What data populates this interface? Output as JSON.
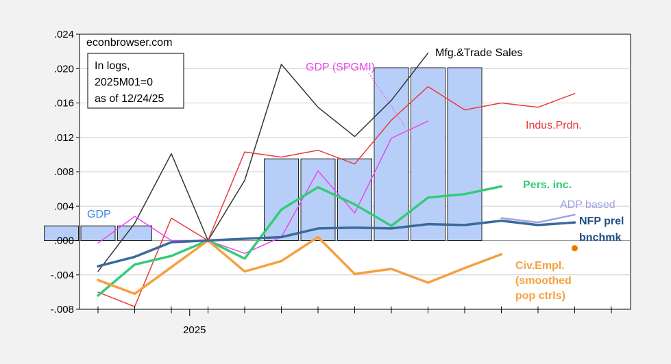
{
  "chart_data": {
    "type": "bar+line",
    "source_label": "econbrowser.com",
    "note_lines": [
      "In logs,",
      "2025M01=0",
      "as of 12/24/25"
    ],
    "x_tick_label": "2025",
    "ylim": [
      -0.008,
      0.024
    ],
    "yticks": [
      "-.008",
      "-.004",
      ".000",
      ".004",
      ".008",
      ".012",
      ".016",
      ".020",
      ".024"
    ],
    "ytick_values": [
      -0.008,
      -0.004,
      0.0,
      0.004,
      0.008,
      0.012,
      0.016,
      0.02,
      0.024
    ],
    "months": [
      "2024-11",
      "2024-12",
      "2025-01",
      "2025-02",
      "2025-03",
      "2025-04",
      "2025-05",
      "2025-06",
      "2025-07",
      "2025-08",
      "2025-09",
      "2025-10",
      "2025-11",
      "2025-12",
      "2026-01"
    ],
    "gdp_bars": [
      {
        "quarter": "2024Q4",
        "value": 0.0017
      },
      {
        "quarter": "2025Q2",
        "value": 0.0095
      },
      {
        "quarter": "2025Q3",
        "value": 0.0201
      }
    ],
    "series": [
      {
        "name": "Mfg.&Trade Sales",
        "color": "#333333",
        "width": 1.5,
        "values": [
          -0.0036,
          0.002,
          0.0101,
          0.0,
          0.007,
          0.0205,
          0.0155,
          0.0121,
          0.0163,
          0.0218,
          null,
          null,
          null,
          null,
          null
        ]
      },
      {
        "name": "Indus.Prdn.",
        "color": "#e8393a",
        "width": 1.5,
        "values": [
          -0.006,
          -0.0077,
          0.0026,
          0.0,
          0.0103,
          0.0097,
          0.0105,
          0.0089,
          0.014,
          0.0179,
          0.0152,
          0.016,
          0.0155,
          0.0171,
          null
        ]
      },
      {
        "name": "GDP (SPGMI)",
        "color": "#ee44ee",
        "width": 1.5,
        "values": [
          -0.0003,
          0.0028,
          0.0,
          0.0,
          -0.0015,
          0.0004,
          0.0081,
          0.0032,
          0.0119,
          0.0139,
          null,
          null,
          null,
          null,
          null
        ]
      },
      {
        "name": "Pers. inc.",
        "color": "#33cc77",
        "width": 3.5,
        "values": [
          -0.0064,
          -0.0028,
          -0.0018,
          0.0,
          -0.0021,
          0.0036,
          0.0062,
          0.0042,
          0.0017,
          0.005,
          0.0054,
          0.0063,
          null,
          null,
          null
        ]
      },
      {
        "name": "Civ.Empl. (smoothed pop ctrls)",
        "color": "#f5a040",
        "width": 3.5,
        "values": [
          -0.0046,
          -0.0062,
          -0.0031,
          0.0,
          -0.0036,
          -0.0024,
          0.0004,
          -0.0039,
          -0.0033,
          -0.0049,
          -0.0032,
          -0.0016,
          null,
          null,
          null
        ]
      },
      {
        "name": "ADP based",
        "color": "#a0a0e8",
        "width": 2.5,
        "values": [
          null,
          null,
          null,
          null,
          null,
          null,
          null,
          null,
          null,
          null,
          null,
          0.0026,
          0.0021,
          0.003,
          null
        ]
      },
      {
        "name": "NFP prel bnchmk",
        "color": "#3a6a9a",
        "width": 3.5,
        "values": [
          -0.003,
          -0.0019,
          -0.0002,
          0.0,
          0.0002,
          0.0004,
          0.0014,
          0.0015,
          0.0014,
          0.0019,
          0.0018,
          0.0023,
          0.0018,
          0.0021,
          null
        ]
      }
    ],
    "civ_empl_point": {
      "month": "2025-12",
      "value": -0.0009
    },
    "labels": {
      "gdp": "GDP",
      "mfg": "Mfg.&Trade Sales",
      "ip": "Indus.Prdn.",
      "spgmi": "GDP (SPGMI)",
      "pers": "Pers. inc.",
      "adp": "ADP based",
      "nfp_1": "NFP prel",
      "nfp_2": "bnchmk",
      "civ_1": "Civ.Empl.",
      "civ_2": "(smoothed",
      "civ_3": "pop ctrls)"
    },
    "colors": {
      "bar_fill": "#b7cff8",
      "bar_stroke": "#222222",
      "gdp_label": "#3a86e0",
      "nfp_label": "#1f4e86",
      "grid": "#cccccc"
    }
  }
}
